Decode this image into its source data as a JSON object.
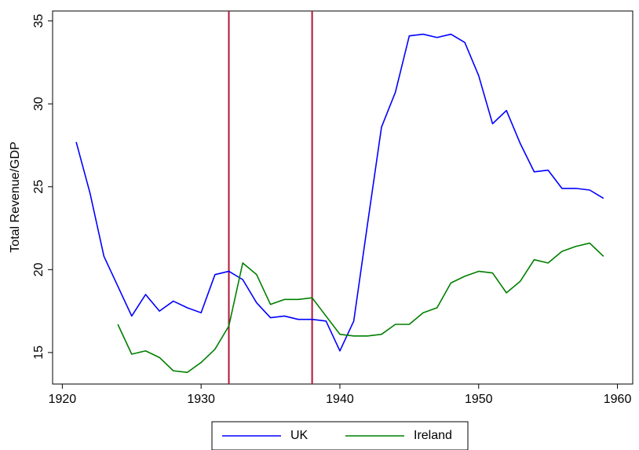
{
  "chart_data": {
    "type": "line",
    "y_label": "Total Revenue/GDP",
    "x": [
      1921,
      1922,
      1923,
      1924,
      1925,
      1926,
      1927,
      1928,
      1929,
      1930,
      1931,
      1932,
      1933,
      1934,
      1935,
      1936,
      1937,
      1938,
      1939,
      1940,
      1941,
      1942,
      1943,
      1944,
      1945,
      1946,
      1947,
      1948,
      1949,
      1950,
      1951,
      1952,
      1953,
      1954,
      1955,
      1956,
      1957,
      1958,
      1959
    ],
    "series": [
      {
        "name": "UK",
        "color": "#0000ff",
        "values": [
          27.7,
          24.6,
          20.8,
          19.0,
          17.2,
          18.5,
          17.5,
          18.1,
          17.7,
          17.4,
          19.7,
          19.9,
          19.4,
          18.0,
          17.1,
          17.2,
          17.0,
          17.0,
          16.9,
          15.1,
          16.9,
          22.8,
          28.6,
          30.7,
          34.1,
          34.2,
          34.0,
          34.2,
          33.7,
          31.7,
          28.8,
          29.6,
          27.6,
          25.9,
          26.0,
          24.9,
          24.9,
          24.8,
          24.3
        ]
      },
      {
        "name": "Ireland",
        "color": "#007f00",
        "values": [
          null,
          null,
          null,
          16.7,
          14.9,
          15.1,
          14.7,
          13.9,
          13.8,
          14.4,
          15.2,
          16.6,
          20.4,
          19.7,
          17.9,
          18.2,
          18.2,
          18.3,
          17.2,
          16.1,
          16.0,
          16.0,
          16.1,
          16.7,
          16.7,
          17.4,
          17.7,
          19.2,
          19.6,
          19.9,
          19.8,
          18.6,
          19.3,
          20.6,
          20.4,
          21.1,
          21.4,
          21.6,
          20.8
        ]
      }
    ],
    "vlines": [
      1932,
      1938
    ],
    "vline_color": "#b0133a",
    "xlim": [
      1919.3,
      1961.1
    ],
    "xticks": [
      1920,
      1930,
      1940,
      1950,
      1960
    ],
    "ylim": [
      13.1,
      35.6
    ],
    "yticks": [
      15,
      20,
      25,
      30,
      35
    ],
    "legend": "bottom"
  }
}
